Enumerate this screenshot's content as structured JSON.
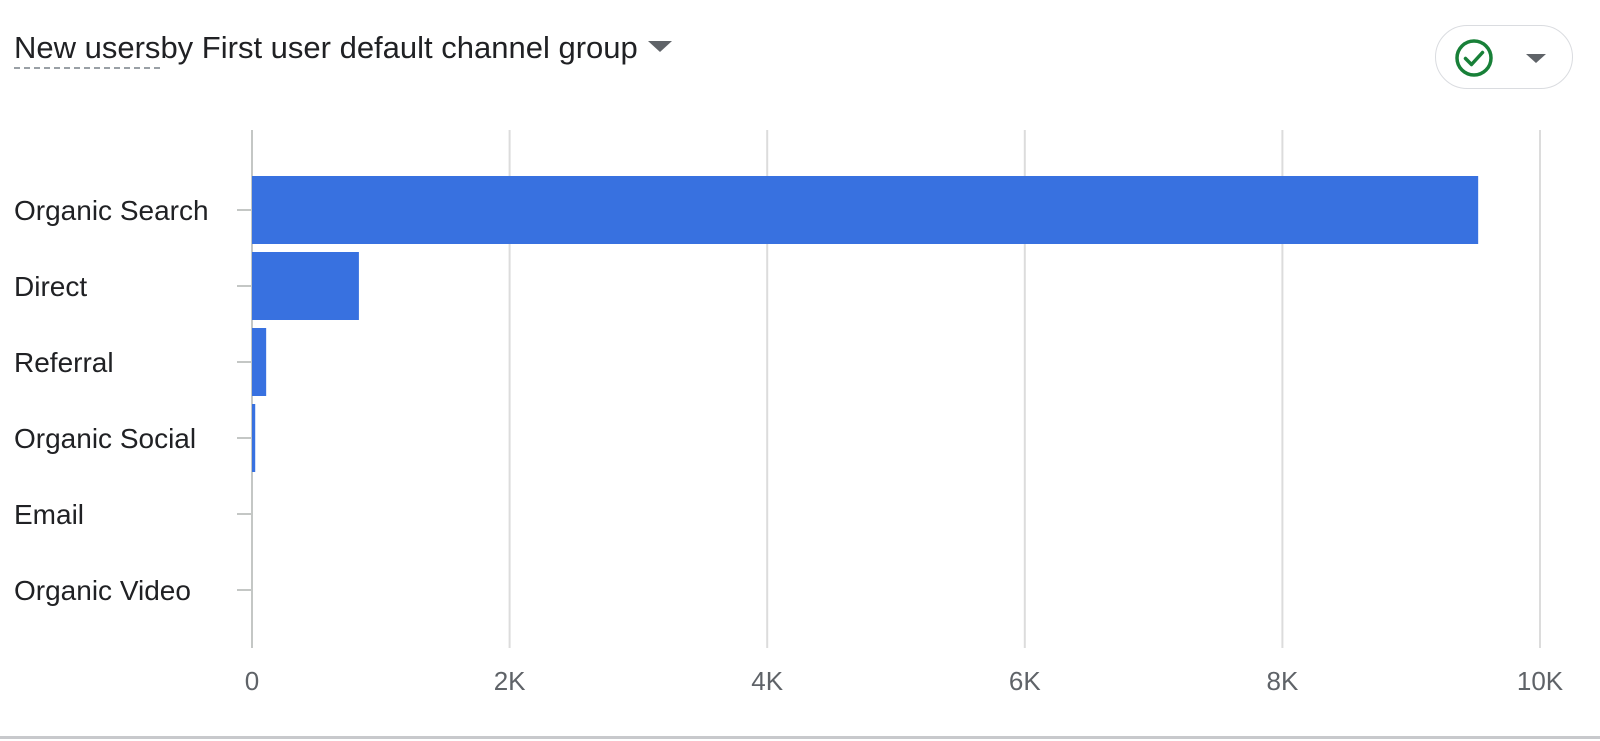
{
  "header": {
    "title_metric": "New users",
    "title_rest": " by First user default channel group",
    "title_caret_icon": "arrow-drop-down-icon",
    "status_icon": "check-circle-icon",
    "status_icon_color": "#188038",
    "status_caret_icon": "arrow-drop-down-icon"
  },
  "chart_data": {
    "type": "bar",
    "orientation": "horizontal",
    "categories": [
      "Organic Search",
      "Direct",
      "Referral",
      "Organic Social",
      "Email",
      "Organic Video"
    ],
    "values": [
      9520,
      830,
      110,
      25,
      0,
      0
    ],
    "xlim": [
      0,
      10000
    ],
    "xticks": [
      0,
      2000,
      4000,
      6000,
      8000,
      10000
    ],
    "xtick_labels": [
      "0",
      "2K",
      "4K",
      "6K",
      "8K",
      "10K"
    ],
    "grid": "vertical",
    "bar_color": "#3871e0",
    "legend": "none"
  }
}
